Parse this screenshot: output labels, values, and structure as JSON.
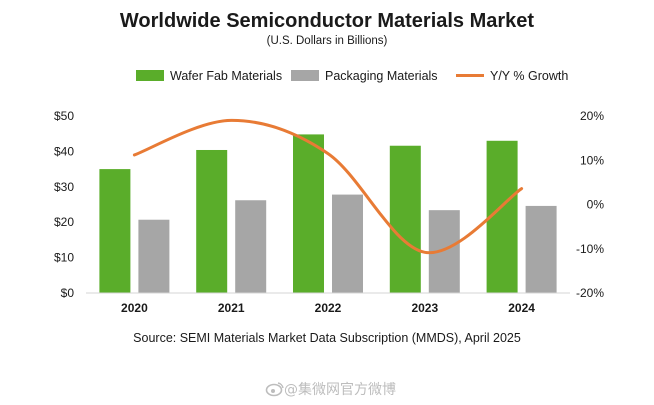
{
  "chart_data": {
    "type": "bar",
    "title": "Worldwide Semiconductor Materials Market",
    "subtitle": "(U.S. Dollars in Billions)",
    "categories": [
      "2020",
      "2021",
      "2022",
      "2023",
      "2024"
    ],
    "series": [
      {
        "name": "Wafer Fab Materials",
        "type": "bar",
        "axis": "left",
        "values": [
          35.0,
          40.4,
          44.8,
          41.6,
          43.0
        ],
        "color": "#5aad2a"
      },
      {
        "name": "Packaging  Materials",
        "type": "bar",
        "axis": "left",
        "values": [
          20.7,
          26.2,
          27.8,
          23.4,
          24.6
        ],
        "color": "#a6a6a6"
      },
      {
        "name": "Y/Y % Growth",
        "type": "line",
        "axis": "right",
        "smooth": true,
        "values": [
          11.2,
          19.0,
          11.5,
          -10.8,
          3.6
        ],
        "color": "#e87b35"
      }
    ],
    "ylim_left": [
      0,
      50
    ],
    "yticks_left": [
      "$0",
      "$10",
      "$20",
      "$30",
      "$40",
      "$50"
    ],
    "ylim_right": [
      -20,
      20
    ],
    "yticks_right": [
      "-20%",
      "-10%",
      "0%",
      "10%",
      "20%"
    ],
    "grid": false,
    "legend_position": "top-center",
    "source": "Source:  SEMI Materials Market Data Subscription (MMDS), April 2025"
  },
  "watermark": "@集微网官方微博",
  "watermark_icon": "weibo-icon"
}
